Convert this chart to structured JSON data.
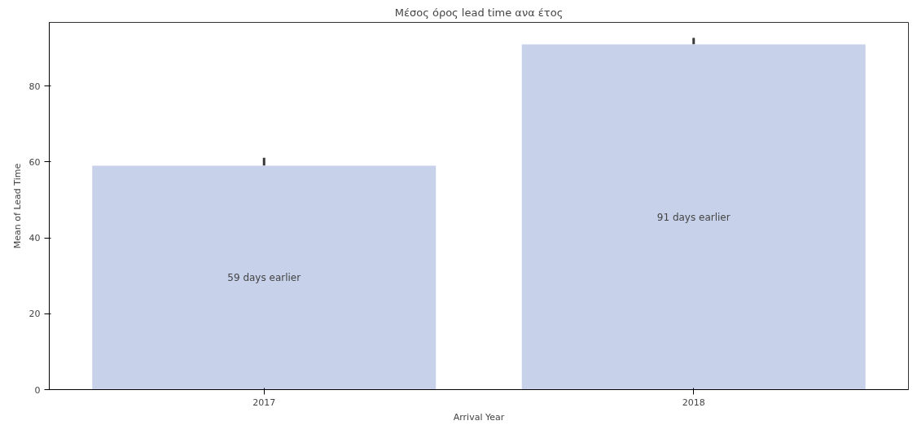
{
  "chart_data": {
    "type": "bar",
    "title": "Μέσος όρος lead time ανα έτος",
    "xlabel": "Arrival Year",
    "ylabel": "Mean of Lead Time",
    "categories": [
      "2017",
      "2018"
    ],
    "values": [
      59.0,
      91.0
    ],
    "color": "#c7d1ea",
    "errors": [
      [
        59.0,
        61.1
      ],
      [
        91.0,
        92.7
      ]
    ],
    "ylim": [
      0,
      96.8
    ],
    "yticks": [
      0,
      20,
      40,
      60,
      80
    ],
    "grid": false,
    "annotations": [
      "59 days earlier",
      "91 days earlier"
    ]
  }
}
